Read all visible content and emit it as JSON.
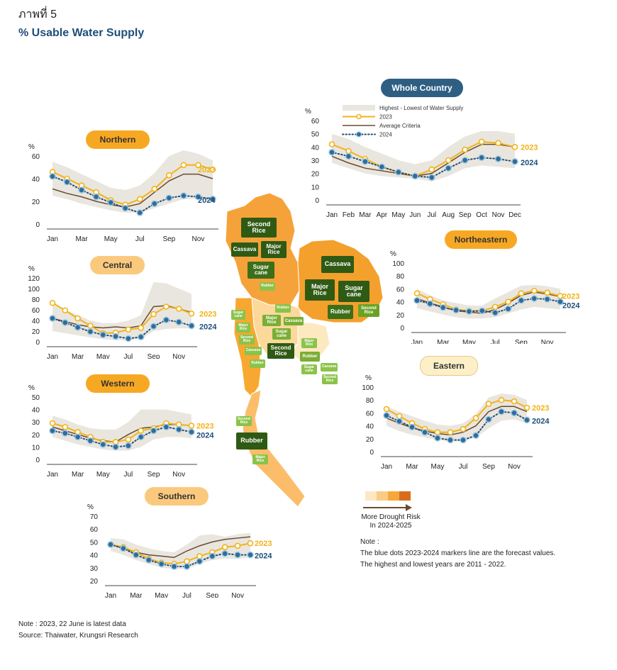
{
  "header": {
    "thai_label": "ภาพที่ 5",
    "title": "% Usable Water Supply"
  },
  "legend": {
    "band": "Highest - Lowest of Water Supply",
    "s2023": "2023",
    "avg": "Average Criteria",
    "s2024": "2024"
  },
  "colors": {
    "band": "#e9e6df",
    "line2023": "#f2b318",
    "avg": "#6b4b2f",
    "dot2024": "#2e6d9a",
    "dotline": "#1f4e79"
  },
  "risk_legend": {
    "label_line1": "More Drought Risk",
    "label_line2": "In 2024-2025",
    "scale_colors": [
      "#fde8c4",
      "#fbcb86",
      "#f6a83a",
      "#d96d1c"
    ]
  },
  "note_block": {
    "title": "Note :",
    "line1": "The blue dots 2023-2024 markers line are the forecast values.",
    "line2": "The highest and lowest years are 2011 - 2022."
  },
  "footer": {
    "note": "Note : 2023, 22 June is latest data",
    "source": "Source: Thaiwater, Krungsri Research"
  },
  "map_labels": {
    "second_rice": "Second Rice",
    "cassava": "Cassava",
    "major_rice": "Major Rice",
    "sugar_cane": "Sugar cane",
    "rubber": "Rubber",
    "cassava_ne": "Cassava",
    "major_rice_ne": "Major Rice",
    "sugar_cane_ne": "Sugar cane",
    "rubber_ne": "Rubber",
    "second_rice_ne": "Second Rice",
    "rubber_n": "Rubber",
    "rubber_c": "Rubber",
    "major_rice_c": "Major Rice",
    "cassava_c": "Cassava",
    "sugar_cane_c": "Sugar cane",
    "second_rice_c": "Second Rice",
    "sugar_cane_w": "Sugar cane",
    "major_rice_w": "Major Rice",
    "second_rice_w": "Second Rice",
    "cassava_w": "Cassava",
    "rubber_w": "Rubber",
    "major_rice_e": "Major Rice",
    "rubber_e": "Rubber",
    "sugar_cane_e": "Sugar cane",
    "cassava_e": "Cassava",
    "second_rice_e": "Second Rice",
    "second_rice_s": "Second Rice",
    "rubber_s": "Rubber",
    "major_rice_s": "Major Rice"
  },
  "chart_data": [
    {
      "id": "whole",
      "type": "line",
      "title": "Whole Country",
      "unit": "%",
      "x": [
        "Jan",
        "Feb",
        "Mar",
        "Apr",
        "May",
        "Jun",
        "Jul",
        "Aug",
        "Sep",
        "Oct",
        "Nov",
        "Dec"
      ],
      "xticks": [
        "Jan",
        "Feb",
        "Mar",
        "Apr",
        "May",
        "Jun",
        "Jul",
        "Aug",
        "Sep",
        "Oct",
        "Nov",
        "Dec"
      ],
      "ylim": [
        0,
        60
      ],
      "yticks": [
        0,
        10,
        20,
        30,
        40,
        50,
        60
      ],
      "band_high": [
        50,
        46,
        40,
        35,
        30,
        27,
        30,
        40,
        48,
        52,
        52,
        50
      ],
      "band_low": [
        28,
        24,
        20,
        18,
        17,
        16,
        14,
        18,
        24,
        26,
        25,
        24
      ],
      "avg": [
        33,
        28,
        24,
        22,
        20,
        18,
        20,
        28,
        36,
        42,
        42,
        40
      ],
      "s2023": [
        42,
        37,
        31,
        25,
        21,
        18,
        23,
        30,
        38,
        44,
        43,
        40
      ],
      "s2024": [
        36,
        33,
        29,
        25,
        21,
        18,
        17,
        24,
        30,
        32,
        31,
        29
      ],
      "label_2023": "2023",
      "label_2024": "2024"
    },
    {
      "id": "northern",
      "type": "line",
      "title": "Northern",
      "unit": "%",
      "x": [
        "Jan",
        "Feb",
        "Mar",
        "Apr",
        "May",
        "Jun",
        "Jul",
        "Aug",
        "Sep",
        "Oct",
        "Nov",
        "Dec"
      ],
      "xticks": [
        "Jan",
        "Mar",
        "May",
        "Jul",
        "Sep",
        "Nov"
      ],
      "ylim": [
        0,
        60
      ],
      "yticks": [
        0,
        20,
        40,
        60
      ],
      "band_high": [
        55,
        50,
        44,
        38,
        32,
        30,
        34,
        45,
        60,
        65,
        62,
        56
      ],
      "band_low": [
        25,
        22,
        18,
        15,
        12,
        10,
        10,
        14,
        18,
        22,
        22,
        20
      ],
      "avg": [
        31,
        27,
        24,
        20,
        17,
        15,
        18,
        28,
        38,
        44,
        44,
        40
      ],
      "s2023": [
        46,
        40,
        34,
        28,
        21,
        17,
        22,
        31,
        43,
        52,
        52,
        48
      ],
      "s2024": [
        42,
        37,
        30,
        24,
        19,
        14,
        10,
        18,
        23,
        25,
        24,
        22
      ],
      "label_2023": "2023",
      "label_2024": "2024"
    },
    {
      "id": "northeastern",
      "type": "line",
      "title": "Northeastern",
      "unit": "%",
      "x": [
        "Jan",
        "Feb",
        "Mar",
        "Apr",
        "May",
        "Jun",
        "Jul",
        "Aug",
        "Sep",
        "Oct",
        "Nov",
        "Dec"
      ],
      "xticks": [
        "Jan",
        "Mar",
        "May",
        "Jul",
        "Sep",
        "Nov"
      ],
      "ylim": [
        0,
        100
      ],
      "yticks": [
        0,
        20,
        40,
        60,
        80,
        100
      ],
      "band_high": [
        60,
        50,
        42,
        38,
        34,
        34,
        45,
        55,
        65,
        66,
        64,
        60
      ],
      "band_low": [
        30,
        25,
        20,
        16,
        14,
        14,
        16,
        22,
        28,
        32,
        30,
        28
      ],
      "avg": [
        45,
        38,
        32,
        26,
        24,
        22,
        28,
        38,
        50,
        55,
        52,
        48
      ],
      "s2023": [
        53,
        44,
        36,
        28,
        26,
        26,
        32,
        40,
        53,
        57,
        54,
        49
      ],
      "s2024": [
        42,
        37,
        31,
        27,
        25,
        26,
        23,
        29,
        42,
        45,
        44,
        40
      ],
      "label_2023": "2023",
      "label_2024": "2024"
    },
    {
      "id": "central",
      "type": "line",
      "title": "Central",
      "unit": "%",
      "x": [
        "Jan",
        "Feb",
        "Mar",
        "Apr",
        "May",
        "Jun",
        "Jul",
        "Aug",
        "Sep",
        "Oct",
        "Nov",
        "Dec"
      ],
      "xticks": [
        "Jan",
        "Mar",
        "May",
        "Jul",
        "Sep",
        "Nov"
      ],
      "ylim": [
        0,
        120
      ],
      "yticks": [
        0,
        20,
        40,
        60,
        80,
        100,
        120
      ],
      "band_high": [
        70,
        60,
        50,
        40,
        35,
        35,
        40,
        50,
        112,
        110,
        100,
        90
      ],
      "band_low": [
        20,
        16,
        12,
        8,
        5,
        3,
        2,
        5,
        20,
        24,
        25,
        25
      ],
      "avg": [
        44,
        38,
        32,
        28,
        26,
        28,
        26,
        30,
        66,
        68,
        62,
        55
      ],
      "s2023": [
        73,
        59,
        44,
        30,
        16,
        17,
        23,
        26,
        52,
        66,
        62,
        53
      ],
      "s2024": [
        44,
        36,
        27,
        19,
        13,
        10,
        6,
        9,
        29,
        41,
        37,
        30
      ],
      "label_2023": "2023",
      "label_2024": "2024"
    },
    {
      "id": "eastern",
      "type": "line",
      "title": "Eastern",
      "unit": "%",
      "x": [
        "Jan",
        "Feb",
        "Mar",
        "Apr",
        "May",
        "Jun",
        "Jul",
        "Aug",
        "Sep",
        "Oct",
        "Nov",
        "Dec"
      ],
      "xticks": [
        "Jan",
        "Mar",
        "May",
        "Jul",
        "Sep",
        "Nov"
      ],
      "ylim": [
        0,
        100
      ],
      "yticks": [
        0,
        20,
        40,
        60,
        80,
        100
      ],
      "band_high": [
        70,
        62,
        55,
        48,
        42,
        40,
        44,
        58,
        84,
        90,
        88,
        80
      ],
      "band_low": [
        40,
        32,
        26,
        22,
        18,
        16,
        16,
        22,
        36,
        48,
        50,
        44
      ],
      "avg": [
        52,
        44,
        37,
        32,
        28,
        26,
        30,
        40,
        62,
        70,
        70,
        62
      ],
      "s2023": [
        66,
        55,
        44,
        35,
        30,
        30,
        35,
        52,
        74,
        80,
        78,
        68
      ],
      "s2024": [
        56,
        47,
        38,
        30,
        21,
        18,
        18,
        25,
        50,
        62,
        60,
        49
      ],
      "label_2023": "2023",
      "label_2024": "2024"
    },
    {
      "id": "western",
      "type": "line",
      "title": "Western",
      "unit": "%",
      "x": [
        "Jan",
        "Feb",
        "Mar",
        "Apr",
        "May",
        "Jun",
        "Jul",
        "Aug",
        "Sep",
        "Oct",
        "Nov",
        "Dec"
      ],
      "xticks": [
        "Jan",
        "Mar",
        "May",
        "Jul",
        "Sep",
        "Nov"
      ],
      "ylim": [
        0,
        50
      ],
      "yticks": [
        0,
        10,
        20,
        30,
        40,
        50
      ],
      "band_high": [
        35,
        32,
        28,
        25,
        24,
        24,
        30,
        40,
        40,
        40,
        38,
        36
      ],
      "band_low": [
        18,
        15,
        12,
        10,
        8,
        7,
        7,
        10,
        16,
        18,
        18,
        17
      ],
      "avg": [
        26,
        23,
        20,
        17,
        15,
        14,
        20,
        25,
        26,
        28,
        28,
        27
      ],
      "s2023": [
        29,
        26,
        22,
        18,
        14,
        14,
        16,
        23,
        25,
        29,
        28,
        27
      ],
      "s2024": [
        23,
        21,
        18,
        15,
        12,
        10,
        11,
        18,
        23,
        26,
        24,
        22
      ],
      "label_2023": "2023",
      "label_2024": "2024"
    },
    {
      "id": "southern",
      "type": "line",
      "title": "Southern",
      "unit": "%",
      "x": [
        "Jan",
        "Feb",
        "Mar",
        "Apr",
        "May",
        "Jun",
        "Jul",
        "Aug",
        "Sep",
        "Oct",
        "Nov",
        "Dec"
      ],
      "xticks": [
        "Jan",
        "Mar",
        "May",
        "Jul",
        "Sep",
        "Nov"
      ],
      "ylim": [
        20,
        70
      ],
      "yticks": [
        20,
        30,
        40,
        50,
        60,
        70
      ],
      "band_high": [
        53,
        52,
        48,
        45,
        43,
        42,
        48,
        55,
        56,
        54,
        56,
        57
      ],
      "band_low": [
        43,
        40,
        36,
        33,
        30,
        29,
        29,
        33,
        36,
        37,
        37,
        38
      ],
      "avg": [
        48,
        45,
        42,
        40,
        39,
        38,
        43,
        47,
        50,
        52,
        53,
        54
      ],
      "s2023": [
        48,
        46,
        42,
        37,
        34,
        33,
        35,
        39,
        42,
        46,
        47,
        49
      ],
      "s2024": [
        48,
        45,
        40,
        36,
        33,
        31,
        31,
        35,
        39,
        41,
        40,
        40
      ],
      "label_2023": "2023",
      "label_2024": "2024"
    }
  ]
}
